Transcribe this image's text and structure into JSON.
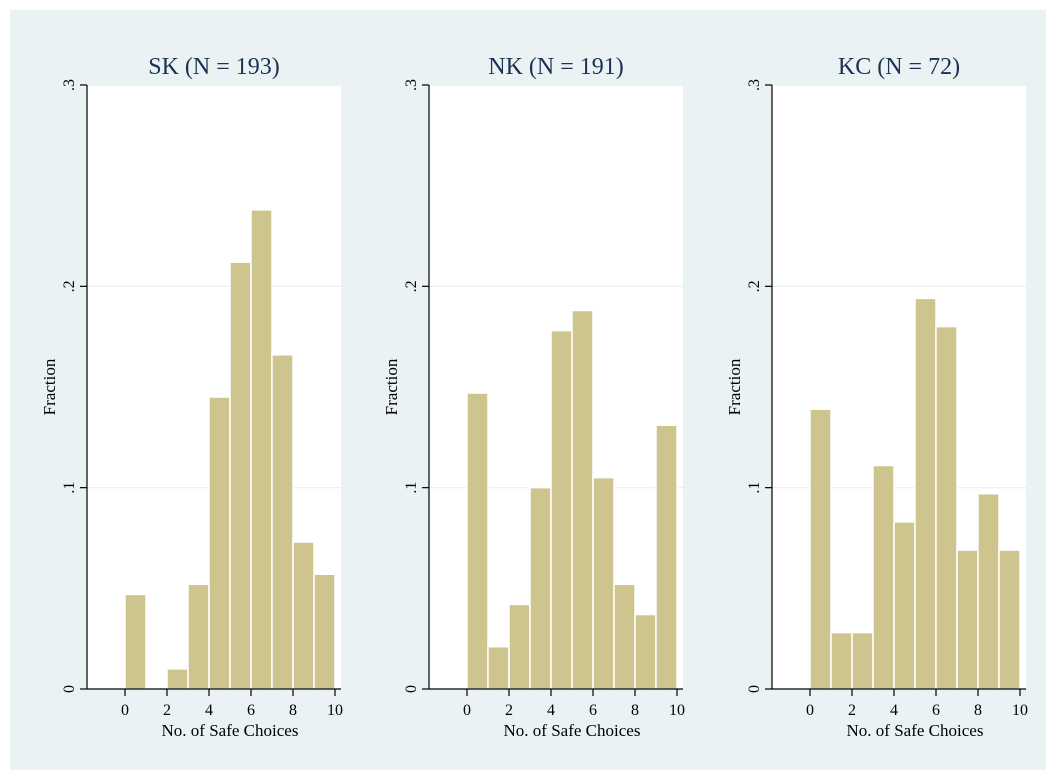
{
  "chart_data": [
    {
      "type": "bar",
      "title": "SK (N = 193)",
      "xlabel": "No. of Safe Choices",
      "ylabel": "Fraction",
      "xlim": [
        0,
        10
      ],
      "ylim": [
        0,
        0.3
      ],
      "x_ticks": [
        "0",
        "2",
        "4",
        "6",
        "8",
        "10"
      ],
      "y_ticks": [
        "0",
        ".1",
        ".2",
        ".3"
      ],
      "bin_width": 1,
      "bins": [
        0,
        1,
        2,
        3,
        4,
        5,
        6,
        7,
        8,
        9
      ],
      "values": [
        0.047,
        0,
        0.01,
        0.052,
        0.145,
        0.212,
        0.238,
        0.166,
        0.073,
        0.057
      ],
      "grid": true
    },
    {
      "type": "bar",
      "title": "NK (N = 191)",
      "xlabel": "No. of Safe Choices",
      "ylabel": "Fraction",
      "xlim": [
        0,
        10
      ],
      "ylim": [
        0,
        0.3
      ],
      "x_ticks": [
        "0",
        "2",
        "4",
        "6",
        "8",
        "10"
      ],
      "y_ticks": [
        "0",
        ".1",
        ".2",
        ".3"
      ],
      "bin_width": 1,
      "bins": [
        0,
        1,
        2,
        3,
        4,
        5,
        6,
        7,
        8,
        9
      ],
      "values": [
        0.147,
        0.021,
        0.042,
        0.1,
        0.178,
        0.188,
        0.105,
        0.052,
        0.037,
        0.131
      ],
      "grid": true
    },
    {
      "type": "bar",
      "title": "KC (N = 72)",
      "xlabel": "No. of Safe Choices",
      "ylabel": "Fraction",
      "xlim": [
        0,
        10
      ],
      "ylim": [
        0,
        0.3
      ],
      "x_ticks": [
        "0",
        "2",
        "4",
        "6",
        "8",
        "10"
      ],
      "y_ticks": [
        "0",
        ".1",
        ".2",
        ".3"
      ],
      "bin_width": 1,
      "bins": [
        0,
        1,
        2,
        3,
        4,
        5,
        6,
        7,
        8,
        9
      ],
      "values": [
        0.139,
        0.028,
        0.028,
        0.111,
        0.083,
        0.194,
        0.18,
        0.069,
        0.097,
        0.069
      ],
      "grid": true
    }
  ],
  "colors": {
    "background": "#eaf2f3",
    "plot_background": "#ffffff",
    "bar_fill": "#cdc48e",
    "title_color": "#1b3154"
  }
}
